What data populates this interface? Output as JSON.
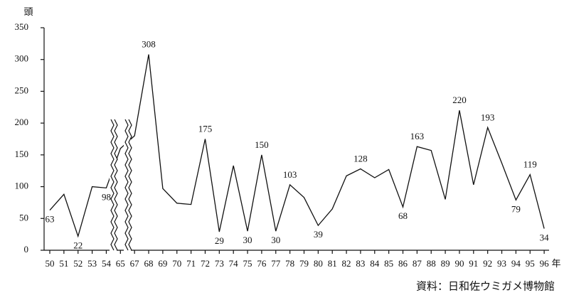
{
  "chart_data": {
    "type": "line",
    "y_unit": "頭",
    "x_unit": "年",
    "source": "資料：日和佐ウミガメ博物館",
    "categories": [
      "50",
      "51",
      "52",
      "53",
      "54",
      "65",
      "67",
      "68",
      "69",
      "70",
      "71",
      "72",
      "73",
      "74",
      "75",
      "76",
      "77",
      "78",
      "79",
      "80",
      "81",
      "82",
      "83",
      "84",
      "85",
      "86",
      "87",
      "88",
      "89",
      "90",
      "91",
      "92",
      "93",
      "94",
      "95",
      "96"
    ],
    "values": [
      63,
      88,
      22,
      100,
      98,
      160,
      180,
      308,
      97,
      74,
      72,
      175,
      29,
      133,
      30,
      150,
      30,
      103,
      83,
      39,
      65,
      117,
      128,
      114,
      127,
      68,
      163,
      157,
      80,
      220,
      103,
      193,
      137,
      79,
      119,
      34
    ],
    "value_labels": [
      "63",
      null,
      "22",
      null,
      "98",
      null,
      null,
      "308",
      null,
      null,
      null,
      "175",
      "29",
      null,
      "30",
      "150",
      "30",
      "103",
      null,
      "39",
      null,
      null,
      "128",
      null,
      null,
      "68",
      "163",
      null,
      null,
      "220",
      null,
      "193",
      null,
      "79",
      "119",
      "34"
    ],
    "color": "#111111",
    "ylim": [
      0,
      350
    ],
    "yticks": [
      0,
      50,
      100,
      150,
      200,
      250,
      300,
      350
    ]
  }
}
